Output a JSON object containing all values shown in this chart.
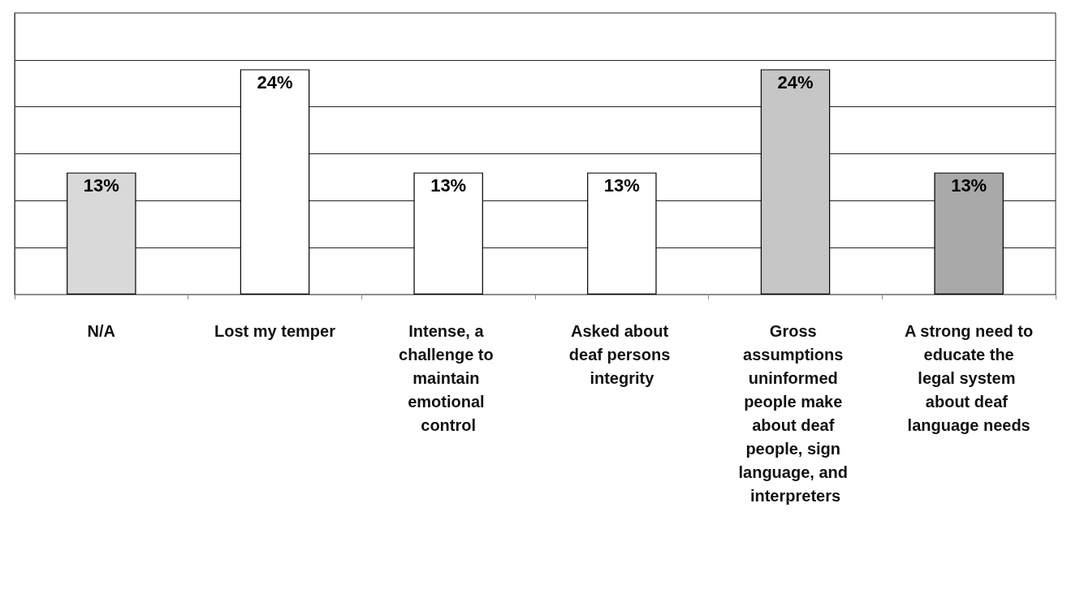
{
  "chart_data": {
    "type": "bar",
    "categories": [
      "N/A",
      "Lost my temper",
      "Intense, a challenge to maintain emotional control",
      "Asked about deaf persons integrity",
      "Gross assumptions uninformed people make about deaf people, sign language, and interpreters",
      "A strong need to educate the legal system about deaf language needs"
    ],
    "values": [
      13,
      24,
      13,
      13,
      24,
      13
    ],
    "value_labels": [
      "13%",
      "24%",
      "13%",
      "13%",
      "24%",
      "13%"
    ],
    "colors": [
      "#d9d9d9",
      "#ffffff",
      "#ffffff",
      "#ffffff",
      "#c6c6c6",
      "#a9a9a9"
    ],
    "ylim": [
      0,
      30
    ],
    "yticks": [
      {
        "value": 0,
        "label": null
      },
      {
        "value": 5,
        "label": null
      },
      {
        "value": 10,
        "label": null
      },
      {
        "value": 15,
        "label": null
      },
      {
        "value": 20,
        "label": null
      },
      {
        "value": 25,
        "label": null
      }
    ],
    "tick_labels": "x",
    "grid": "y"
  }
}
